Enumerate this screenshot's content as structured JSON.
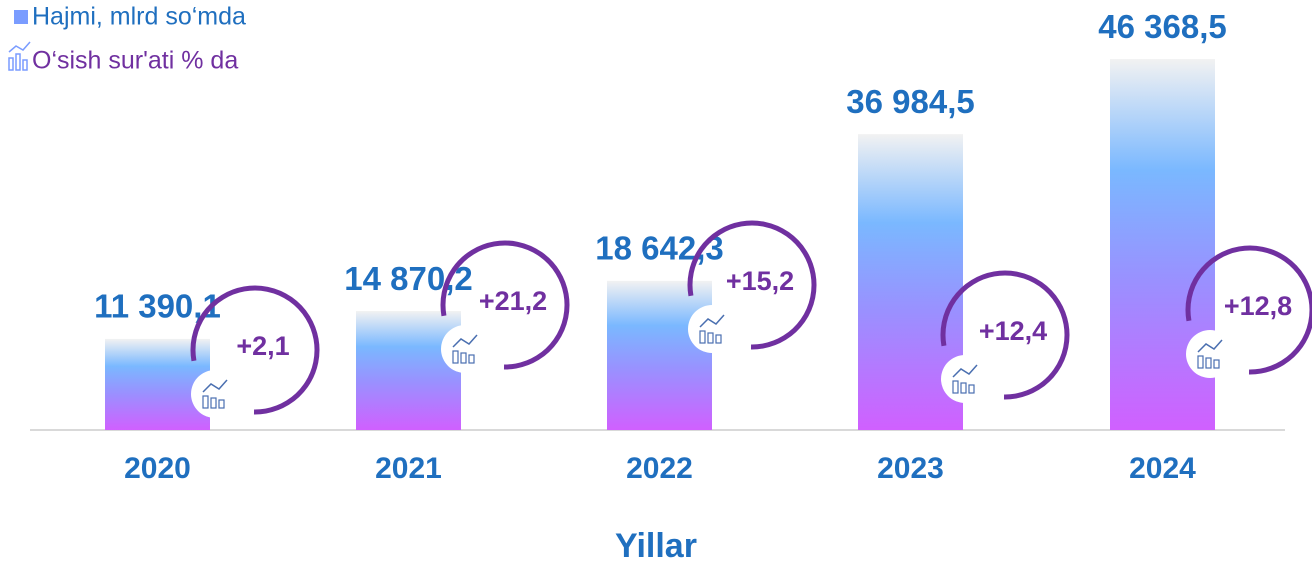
{
  "chart_data": {
    "type": "bar",
    "x_label": "Yillar",
    "categories": [
      "2020",
      "2021",
      "2022",
      "2023",
      "2024"
    ],
    "ylim": [
      0,
      50000
    ],
    "series": [
      {
        "name": "Hajmi, mlrd so‘mda",
        "color": "#7a9cff",
        "values": [
          11390.1,
          14870.2,
          18642.3,
          36984.5,
          46368.5
        ],
        "value_labels": [
          "11 390,1",
          "14 870,2",
          "18 642,3",
          "36 984,5",
          "46 368,5"
        ]
      },
      {
        "name": "O‘sish sur'ati % da",
        "color": "#7030a0",
        "values": [
          2.1,
          21.2,
          15.2,
          12.4,
          12.8
        ],
        "value_labels": [
          "+2,1",
          "+21,2",
          "+15,2",
          "+12,4",
          "+12,8"
        ]
      }
    ]
  }
}
